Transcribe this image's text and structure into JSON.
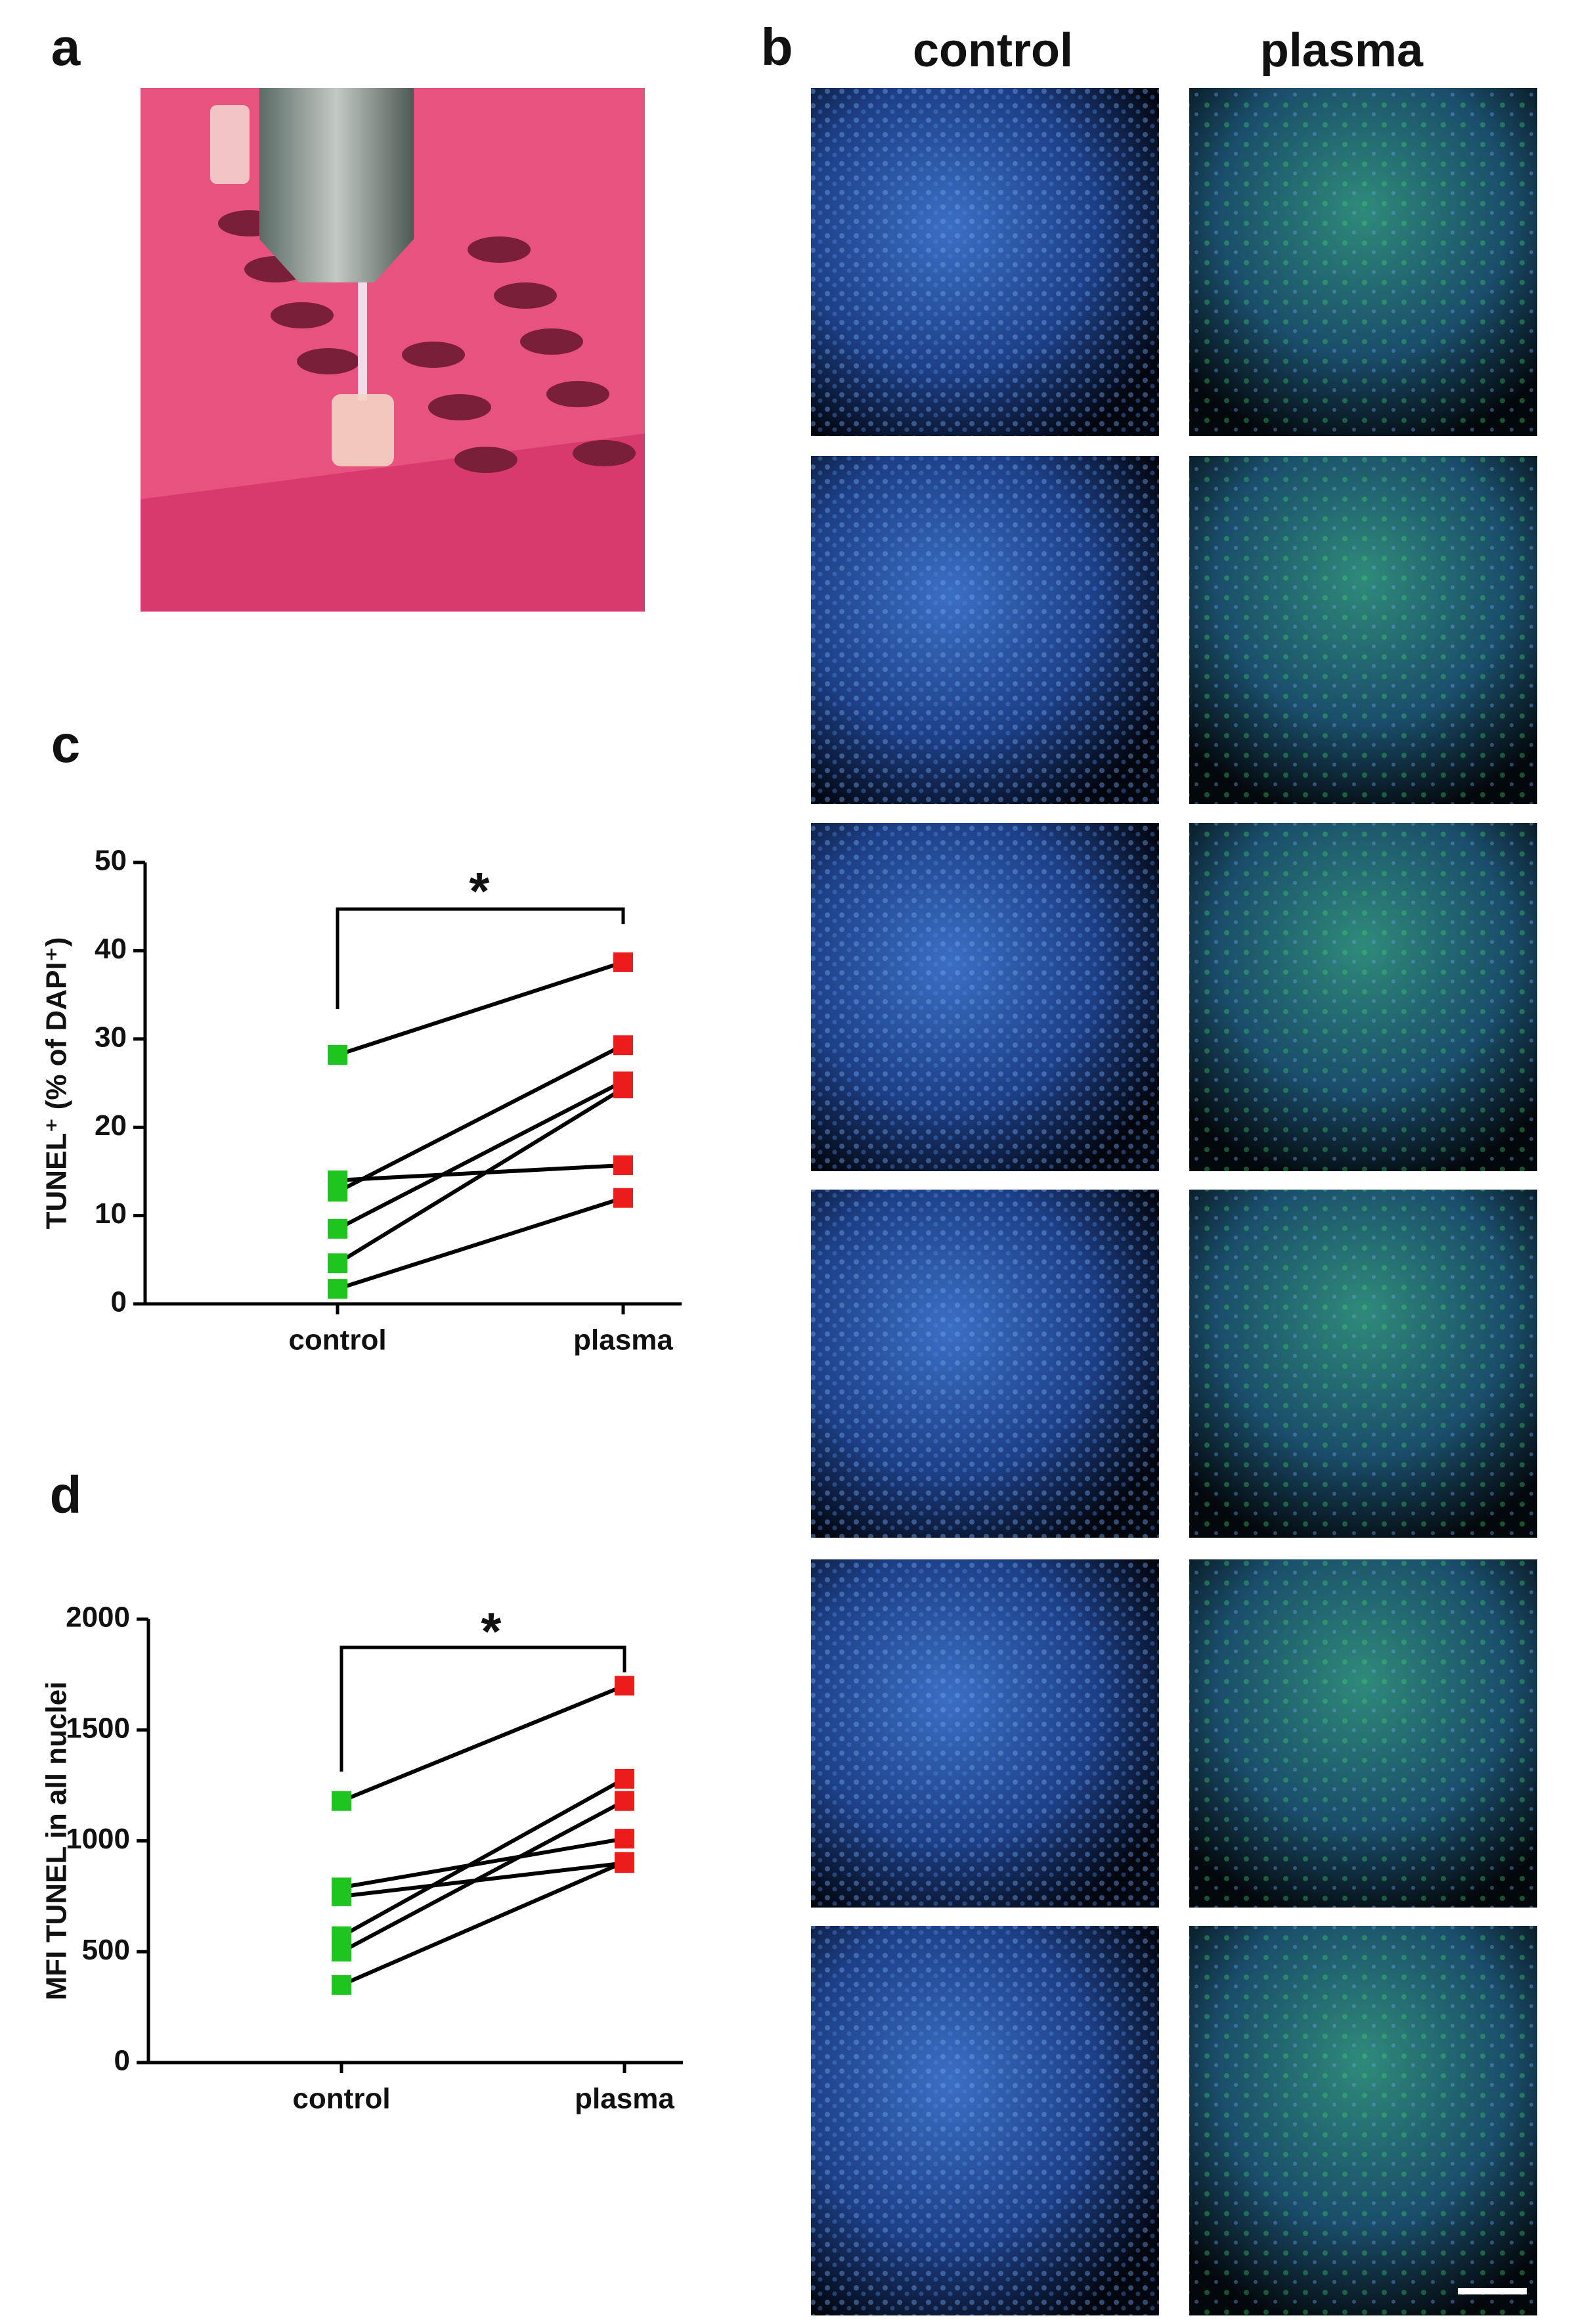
{
  "panel_labels": [
    "a",
    "b",
    "c",
    "d"
  ],
  "column_titles": [
    "control",
    "plasma"
  ],
  "chart_data": [
    {
      "type": "paired-line",
      "ylabel": "TUNEL⁺ (% of DAPI⁺)",
      "categories": [
        "control",
        "plasma"
      ],
      "marker_colors": [
        "#1ec51e",
        "#ec1c1c"
      ],
      "line_color": "#000000",
      "series": [
        {
          "values": [
            28.2,
            38.7
          ]
        },
        {
          "values": [
            14.0,
            15.7
          ]
        },
        {
          "values": [
            12.7,
            29.3
          ]
        },
        {
          "values": [
            8.5,
            25.2
          ]
        },
        {
          "values": [
            4.6,
            24.4
          ]
        },
        {
          "values": [
            1.7,
            12.0
          ]
        }
      ],
      "ylim": [
        0,
        50
      ],
      "yticks": [
        0,
        10,
        20,
        30,
        40,
        50
      ],
      "significance": "*"
    },
    {
      "type": "paired-line",
      "ylabel": "MFI TUNEL in all nuclei",
      "categories": [
        "control",
        "plasma"
      ],
      "marker_colors": [
        "#1ec51e",
        "#ec1c1c"
      ],
      "line_color": "#000000",
      "series": [
        {
          "values": [
            1180,
            1700
          ]
        },
        {
          "values": [
            790,
            1010
          ]
        },
        {
          "values": [
            750,
            900
          ]
        },
        {
          "values": [
            570,
            1280
          ]
        },
        {
          "values": [
            500,
            1180
          ]
        },
        {
          "values": [
            350,
            905
          ]
        }
      ],
      "ylim": [
        0,
        2000
      ],
      "yticks": [
        0,
        500,
        1000,
        1500,
        2000
      ],
      "significance": "*"
    }
  ]
}
